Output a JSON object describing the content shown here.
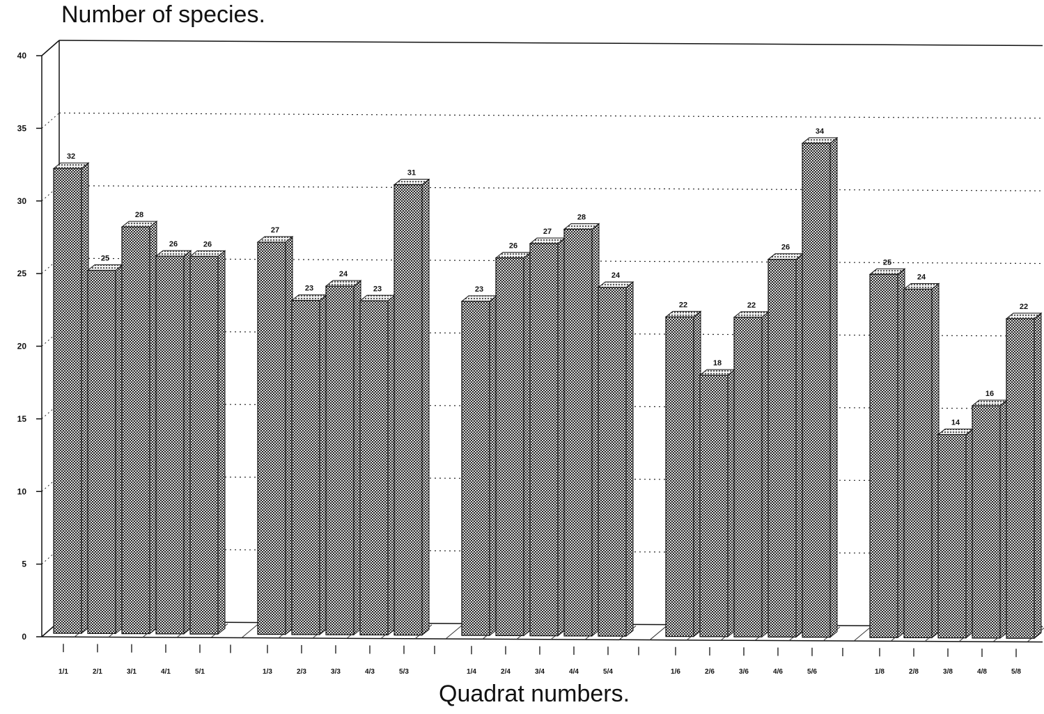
{
  "chart_data": {
    "type": "bar",
    "title": "",
    "ylabel": "Number of species.",
    "xlabel": "Quadrat numbers.",
    "ylim": [
      0,
      40
    ],
    "yticks": [
      0,
      5,
      10,
      15,
      20,
      25,
      30,
      35,
      40
    ],
    "grid": true,
    "grid_style": "dotted",
    "bar_style": "3d-hatched",
    "groups": [
      {
        "categories": [
          "1/1",
          "2/1",
          "3/1",
          "4/1",
          "5/1"
        ],
        "values": [
          32,
          25,
          28,
          26,
          26
        ]
      },
      {
        "categories": [
          "1/3",
          "2/3",
          "3/3",
          "4/3",
          "5/3"
        ],
        "values": [
          27,
          23,
          24,
          23,
          31
        ]
      },
      {
        "categories": [
          "1/4",
          "2/4",
          "3/4",
          "4/4",
          "5/4"
        ],
        "values": [
          23,
          26,
          27,
          28,
          24
        ]
      },
      {
        "categories": [
          "1/6",
          "2/6",
          "3/6",
          "4/6",
          "5/6"
        ],
        "values": [
          22,
          18,
          22,
          26,
          34
        ]
      },
      {
        "categories": [
          "1/8",
          "2/8",
          "3/8",
          "4/8",
          "5/8"
        ],
        "values": [
          25,
          24,
          14,
          16,
          22
        ]
      }
    ]
  }
}
